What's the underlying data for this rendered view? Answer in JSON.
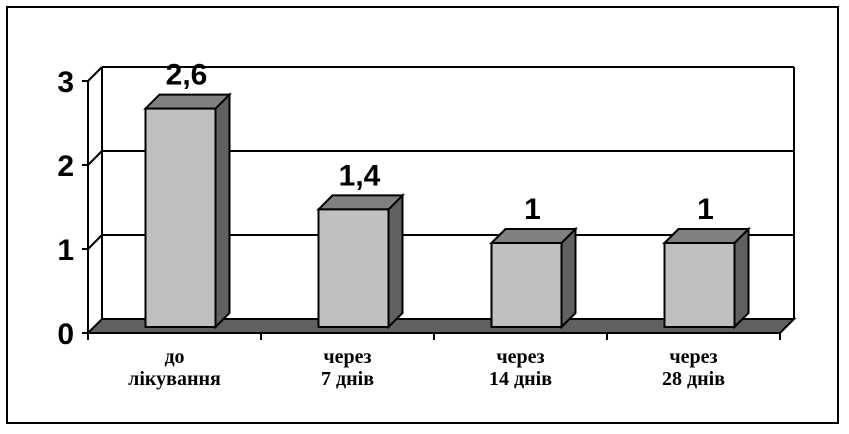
{
  "chart_data": {
    "type": "bar",
    "categories": [
      [
        "до",
        "лікування"
      ],
      [
        "через",
        "7 днів"
      ],
      [
        "через",
        "14 днів"
      ],
      [
        "через",
        "28 днів"
      ]
    ],
    "values": [
      2.6,
      1.4,
      1,
      1
    ],
    "value_labels": [
      "2,6",
      "1,4",
      "1",
      "1"
    ],
    "y_ticks": [
      "0",
      "1",
      "2",
      "3"
    ],
    "ylim": [
      0,
      3
    ],
    "grid": true,
    "style": "3d-column",
    "colors": {
      "bar_face": "#c0c0c0",
      "bar_side": "#606060",
      "bar_top": "#808080",
      "floor": "#606060",
      "line": "#000000"
    }
  }
}
